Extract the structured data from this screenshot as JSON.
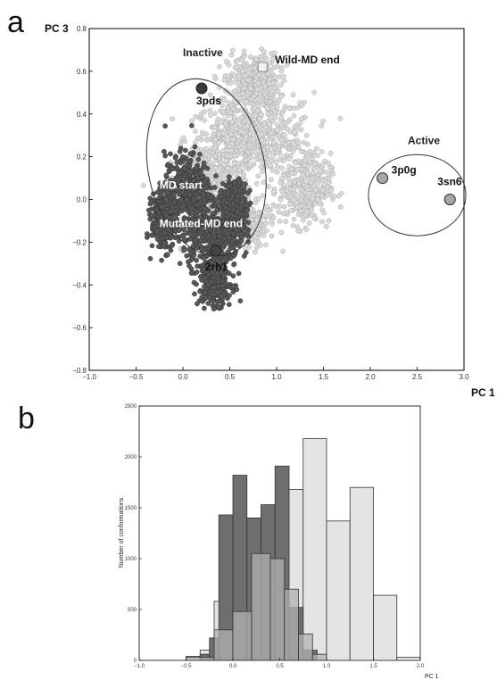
{
  "panel_labels": {
    "a": "a",
    "b": "b"
  },
  "chart_data": [
    {
      "type": "scatter",
      "title": "",
      "xlabel": "PC 1",
      "ylabel": "PC 3",
      "xlim": [
        -1.0,
        3.0
      ],
      "ylim": [
        -0.8,
        0.8
      ],
      "xticks": [
        "−1.0",
        "−0.5",
        "0.0",
        "0.5",
        "1.0",
        "1.5",
        "2.0",
        "2.5",
        "3.0"
      ],
      "yticks": [
        "−0.8",
        "−0.6",
        "−0.4",
        "−0.2",
        "0.0",
        "0.2",
        "0.4",
        "0.6",
        "0.8"
      ],
      "grid": false,
      "clouds": [
        {
          "name": "Wild-MD",
          "color": "#dadada",
          "edge": "#a8a8a8",
          "blobs": [
            [
              0.5,
              0.25,
              0.32,
              0.2
            ],
            [
              0.9,
              0.3,
              0.45,
              0.18
            ],
            [
              0.75,
              0.55,
              0.25,
              0.12
            ],
            [
              0.2,
              0.05,
              0.3,
              0.18
            ],
            [
              1.3,
              0.05,
              0.25,
              0.15
            ],
            [
              0.6,
              -0.1,
              0.3,
              0.12
            ]
          ]
        },
        {
          "name": "Mutated-MD",
          "color": "#585858",
          "edge": "#333333",
          "blobs": [
            [
              0.05,
              0.05,
              0.22,
              0.15
            ],
            [
              0.3,
              -0.15,
              0.28,
              0.15
            ],
            [
              0.35,
              -0.38,
              0.15,
              0.1
            ],
            [
              -0.2,
              -0.1,
              0.12,
              0.12
            ],
            [
              0.55,
              -0.05,
              0.12,
              0.12
            ]
          ]
        }
      ],
      "structures": [
        {
          "label": "3pds",
          "x": 0.2,
          "y": 0.52,
          "color": "#3a3a3a",
          "shape": "circle"
        },
        {
          "label": "Wild-MD end",
          "x": 0.85,
          "y": 0.62,
          "color": "#f2f2f2",
          "shape": "square"
        },
        {
          "label": "3p0g",
          "x": 2.13,
          "y": 0.1,
          "color": "#a8a8a8",
          "shape": "circle"
        },
        {
          "label": "3sn6",
          "x": 2.85,
          "y": 0.0,
          "color": "#a8a8a8",
          "shape": "circle"
        },
        {
          "label": "2rh1",
          "x": 0.35,
          "y": -0.24,
          "color": "#444444",
          "shape": "circle"
        }
      ],
      "text_annotations": [
        {
          "text": "Inactive",
          "x": 0.0,
          "y": 0.67,
          "color": "#222222"
        },
        {
          "text": "Active",
          "x": 2.4,
          "y": 0.26,
          "color": "#222222"
        },
        {
          "text": "MD start",
          "x": -0.25,
          "y": 0.05,
          "color": "#ffffff"
        },
        {
          "text": "Mutated-MD end",
          "x": -0.25,
          "y": -0.13,
          "color": "#ffffff"
        }
      ],
      "regions": [
        {
          "name": "Inactive",
          "cx": 0.25,
          "cy": 0.15,
          "rx": 0.62,
          "ry": 0.42,
          "angle_deg": -12
        },
        {
          "name": "Active",
          "cx": 2.5,
          "cy": 0.02,
          "rx": 0.52,
          "ry": 0.19,
          "angle_deg": 0
        }
      ]
    },
    {
      "type": "bar",
      "title": "",
      "xlabel": "PC 1",
      "ylabel": "Number of conformations",
      "xlim": [
        -1.0,
        2.0
      ],
      "ylim": [
        0,
        2500
      ],
      "xticks": [
        "−1.0",
        "−0.5",
        "0.0",
        "0.5",
        "1.0",
        "1.5",
        "2.0"
      ],
      "yticks": [
        "0",
        "500",
        "1000",
        "1500",
        "2000",
        "2500"
      ],
      "grid": false,
      "series": [
        {
          "name": "",
          "color": "#e4e4e4",
          "bins": [
            [
              -0.5,
              -0.35,
              40
            ],
            [
              -0.35,
              -0.2,
              100
            ],
            [
              -0.2,
              0.0,
              580
            ],
            [
              0.0,
              0.3,
              560
            ],
            [
              0.3,
              0.5,
              1090
            ],
            [
              0.5,
              0.75,
              1680
            ],
            [
              0.75,
              1.0,
              2180
            ],
            [
              1.0,
              1.25,
              1370
            ],
            [
              1.25,
              1.5,
              1700
            ],
            [
              1.5,
              1.75,
              640
            ],
            [
              1.75,
              2.0,
              30
            ]
          ]
        },
        {
          "name": "",
          "color": "#6e6e6e",
          "bins": [
            [
              -0.35,
              -0.25,
              60
            ],
            [
              -0.25,
              -0.15,
              220
            ],
            [
              -0.15,
              0.0,
              1430
            ],
            [
              0.0,
              0.15,
              1820
            ],
            [
              0.15,
              0.3,
              1400
            ],
            [
              0.3,
              0.45,
              1530
            ],
            [
              0.45,
              0.6,
              1910
            ],
            [
              0.6,
              0.75,
              520
            ],
            [
              0.75,
              0.9,
              100
            ]
          ]
        },
        {
          "name": "",
          "color": "#b2b2b2",
          "bins": [
            [
              -0.5,
              -0.2,
              30
            ],
            [
              -0.2,
              0.0,
              300
            ],
            [
              0.0,
              0.2,
              480
            ],
            [
              0.2,
              0.4,
              1050
            ],
            [
              0.4,
              0.55,
              1000
            ],
            [
              0.55,
              0.7,
              700
            ],
            [
              0.7,
              0.85,
              260
            ],
            [
              0.85,
              1.0,
              60
            ]
          ]
        }
      ]
    }
  ]
}
